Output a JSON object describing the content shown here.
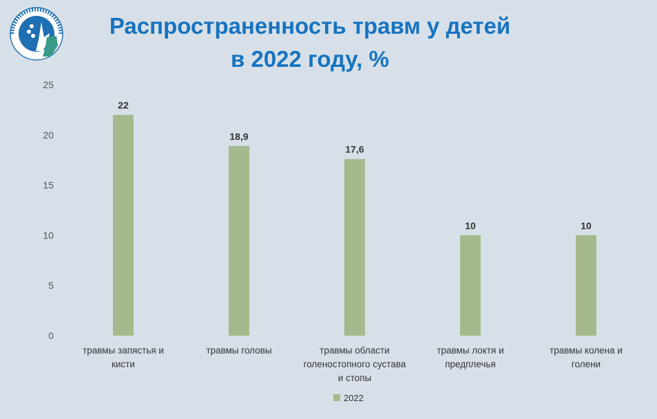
{
  "title_lines": [
    "Распространенность травм у детей",
    "в 2022 году, %"
  ],
  "logo": {
    "ring_text": "НИИ ДЕТСКОЙ ТРАВМАТОЛОГИИ И ОРТОПЕДИИ им. Г.И. ТУРНЕРА",
    "colors": {
      "blue": "#1f6fb3",
      "green": "#3a9a8a"
    }
  },
  "chart_data": {
    "type": "bar",
    "categories": [
      [
        "травмы запястья и",
        "кисти"
      ],
      [
        "травмы головы"
      ],
      [
        "травмы области",
        "голеностопного сустава",
        "и стопы"
      ],
      [
        "травмы локтя и",
        "предплечья"
      ],
      [
        "травмы колена и",
        "голени"
      ]
    ],
    "series": [
      {
        "name": "2022",
        "values": [
          22,
          18.9,
          17.6,
          10,
          10
        ],
        "labels": [
          "22",
          "18,9",
          "17,6",
          "10",
          "10"
        ],
        "color": "#a6b98c"
      }
    ],
    "y_ticks": [
      0,
      5,
      10,
      15,
      20,
      25
    ],
    "ylim": [
      0,
      25
    ],
    "legend_position": "bottom",
    "grid": false
  }
}
